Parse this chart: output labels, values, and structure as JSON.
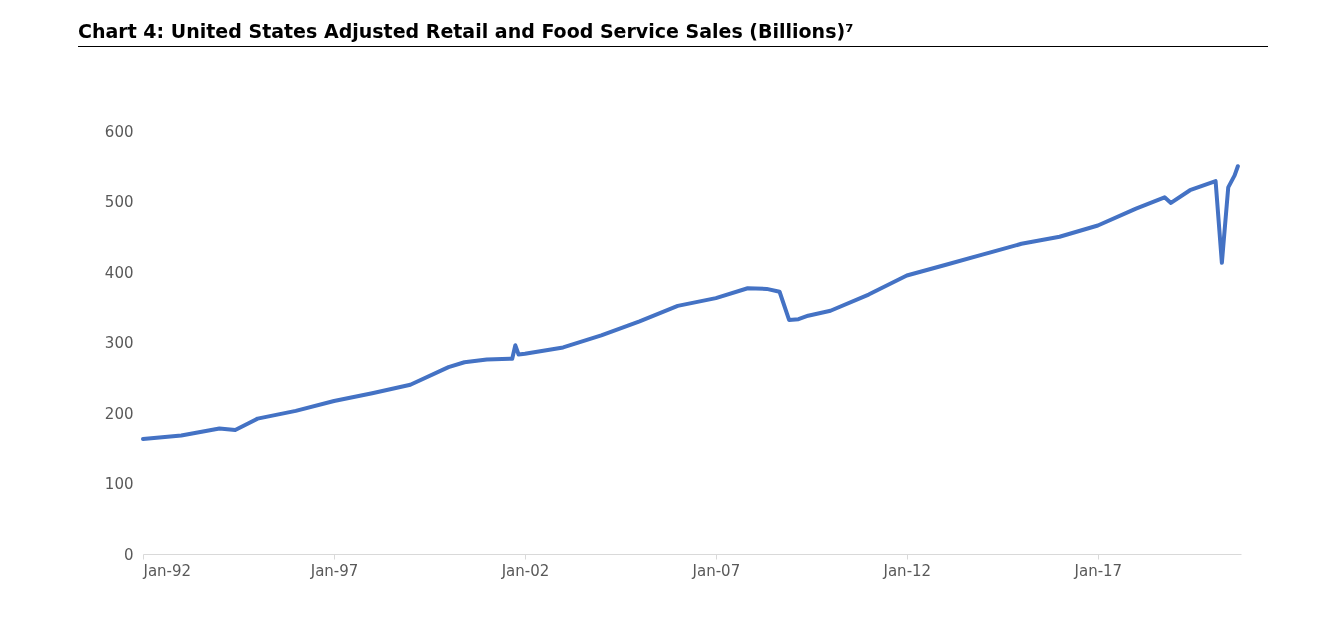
{
  "chart_data": {
    "type": "line",
    "title": "Chart 4: United States Adjusted Retail and Food Service Sales (Billions)⁷",
    "x": [
      "1992-01",
      "1993-01",
      "1994-01",
      "1994-06",
      "1995-01",
      "1996-01",
      "1997-01",
      "1998-01",
      "1999-01",
      "2000-01",
      "2000-06",
      "2001-01",
      "2001-09",
      "2001-10",
      "2001-11",
      "2002-01",
      "2003-01",
      "2004-01",
      "2005-01",
      "2006-01",
      "2007-01",
      "2007-11",
      "2008-05",
      "2008-09",
      "2008-12",
      "2009-03",
      "2009-06",
      "2010-01",
      "2011-01",
      "2012-01",
      "2013-01",
      "2014-01",
      "2015-01",
      "2016-01",
      "2017-01",
      "2018-01",
      "2018-10",
      "2018-12",
      "2019-06",
      "2020-02",
      "2020-04",
      "2020-06",
      "2020-08",
      "2020-09"
    ],
    "series": [
      {
        "color": "#4472c4",
        "values": [
          163,
          168,
          178,
          176,
          192,
          203,
          217,
          228,
          240,
          265,
          272,
          276,
          277,
          296,
          283,
          284,
          293,
          310,
          330,
          352,
          363,
          377,
          376,
          372,
          332,
          333,
          338,
          345,
          368,
          395,
          410,
          425,
          440,
          450,
          466,
          490,
          506,
          498,
          516,
          529,
          413,
          520,
          537,
          550
        ]
      }
    ],
    "xlim": [
      "1992-01",
      "2020-10"
    ],
    "xticks": [
      {
        "value": "1992-01",
        "label": "Jan-92"
      },
      {
        "value": "1997-01",
        "label": "Jan-97"
      },
      {
        "value": "2002-01",
        "label": "Jan-02"
      },
      {
        "value": "2007-01",
        "label": "Jan-07"
      },
      {
        "value": "2012-01",
        "label": "Jan-12"
      },
      {
        "value": "2017-01",
        "label": "Jan-17"
      }
    ],
    "ylim": [
      0,
      600
    ],
    "yticks": [
      0,
      100,
      200,
      300,
      400,
      500,
      600
    ],
    "grid": false,
    "legend": false
  }
}
